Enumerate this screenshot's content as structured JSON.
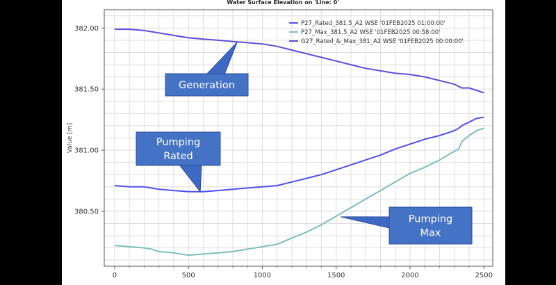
{
  "chart_data": {
    "type": "line",
    "title": "Water Surface Elevation on 'Line: 0'",
    "ylabel": "Value [m]",
    "xlabel": "",
    "xlim": [
      -70,
      2560
    ],
    "ylim": [
      380.05,
      382.15
    ],
    "grid": true,
    "legend_position": "top-right",
    "x_ticks": [
      0,
      500,
      1000,
      1500,
      2000,
      2500
    ],
    "y_ticks": [
      380.5,
      381.0,
      381.5,
      382.0
    ],
    "y_tick_labels": [
      "380.50",
      "381.00",
      "381.50",
      "382.00"
    ],
    "series": [
      {
        "name": "P27_Rated_381.5_A2 WSE '01FEB2025 01:00:00'",
        "color": "#5050ee",
        "x": [
          0,
          100,
          200,
          250,
          300,
          400,
          500,
          600,
          700,
          800,
          900,
          1000,
          1100,
          1200,
          1300,
          1400,
          1500,
          1600,
          1700,
          1800,
          1900,
          2000,
          2100,
          2200,
          2300,
          2330,
          2350,
          2400,
          2450,
          2500
        ],
        "y": [
          380.71,
          380.7,
          380.7,
          380.69,
          380.68,
          380.67,
          380.66,
          380.66,
          380.67,
          380.68,
          380.69,
          380.7,
          380.71,
          380.74,
          380.77,
          380.8,
          380.84,
          380.88,
          380.92,
          380.96,
          381.01,
          381.05,
          381.09,
          381.12,
          381.16,
          381.18,
          381.2,
          381.23,
          381.26,
          381.27
        ]
      },
      {
        "name": "P27_Max_381.5_A2 WSE '01FEB2025 00:58:00'",
        "color": "#7cc0bc",
        "x": [
          0,
          100,
          200,
          250,
          300,
          400,
          500,
          600,
          700,
          800,
          900,
          1000,
          1100,
          1200,
          1300,
          1400,
          1500,
          1600,
          1700,
          1800,
          1900,
          2000,
          2100,
          2200,
          2300,
          2330,
          2350,
          2400,
          2450,
          2500
        ],
        "y": [
          380.22,
          380.21,
          380.2,
          380.19,
          380.17,
          380.16,
          380.14,
          380.15,
          380.16,
          380.17,
          380.19,
          380.21,
          380.23,
          380.28,
          380.33,
          380.39,
          380.46,
          380.53,
          380.6,
          380.67,
          380.74,
          380.81,
          380.86,
          380.92,
          380.99,
          381.01,
          381.07,
          381.12,
          381.16,
          381.18
        ]
      },
      {
        "name": "G27_Rated_&_Max_381_A2 WSE '01FEB2025 00:00:00'",
        "color": "#5b50d8",
        "x": [
          0,
          100,
          200,
          300,
          400,
          500,
          600,
          700,
          800,
          900,
          1000,
          1100,
          1200,
          1300,
          1400,
          1500,
          1600,
          1700,
          1800,
          1900,
          2000,
          2100,
          2200,
          2300,
          2350,
          2400,
          2450,
          2500
        ],
        "y": [
          381.99,
          381.99,
          381.98,
          381.96,
          381.94,
          381.92,
          381.91,
          381.9,
          381.89,
          381.88,
          381.87,
          381.85,
          381.82,
          381.79,
          381.76,
          381.73,
          381.7,
          381.67,
          381.65,
          381.63,
          381.62,
          381.6,
          381.57,
          381.54,
          381.51,
          381.51,
          381.49,
          381.47
        ]
      }
    ],
    "annotations": [
      {
        "text_lines": [
          "Generation"
        ],
        "anchor_x": 830,
        "anchor_y": 381.885
      },
      {
        "text_lines": [
          "Pumping",
          "Rated"
        ],
        "anchor_x": 580,
        "anchor_y": 380.66
      },
      {
        "text_lines": [
          "Pumping",
          "Max"
        ],
        "anchor_x": 1530,
        "anchor_y": 380.455
      }
    ]
  }
}
